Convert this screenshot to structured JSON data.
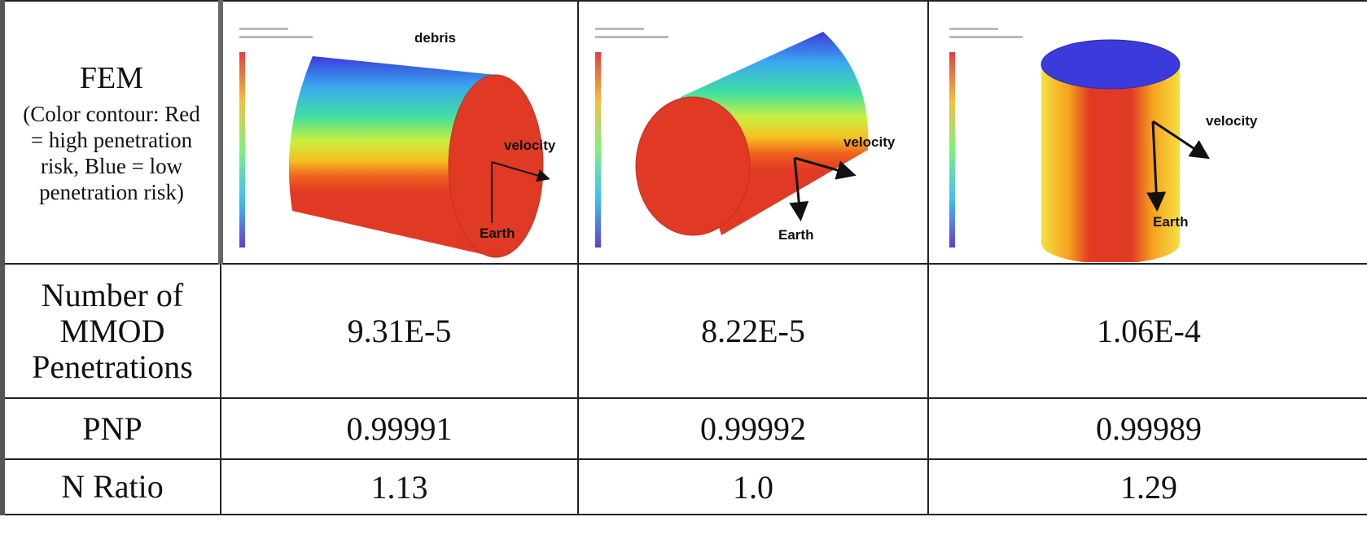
{
  "table": {
    "fem": {
      "label": "FEM",
      "note": "(Color contour: Red = high penetration risk, Blue = low penetration risk)",
      "images": [
        {
          "labels": [
            "debris",
            "velocity",
            "Earth"
          ]
        },
        {
          "labels": [
            "velocity",
            "Earth"
          ]
        },
        {
          "labels": [
            "velocity",
            "Earth"
          ]
        }
      ]
    },
    "rows": [
      {
        "label": "Number of MMOD Penetrations",
        "values": [
          "9.31E-5",
          "8.22E-5",
          "1.06E-4"
        ]
      },
      {
        "label": "PNP",
        "values": [
          "0.99991",
          "0.99992",
          "0.99989"
        ]
      },
      {
        "label": "N Ratio",
        "values": [
          "1.13",
          "1.0",
          "1.29"
        ]
      }
    ]
  }
}
